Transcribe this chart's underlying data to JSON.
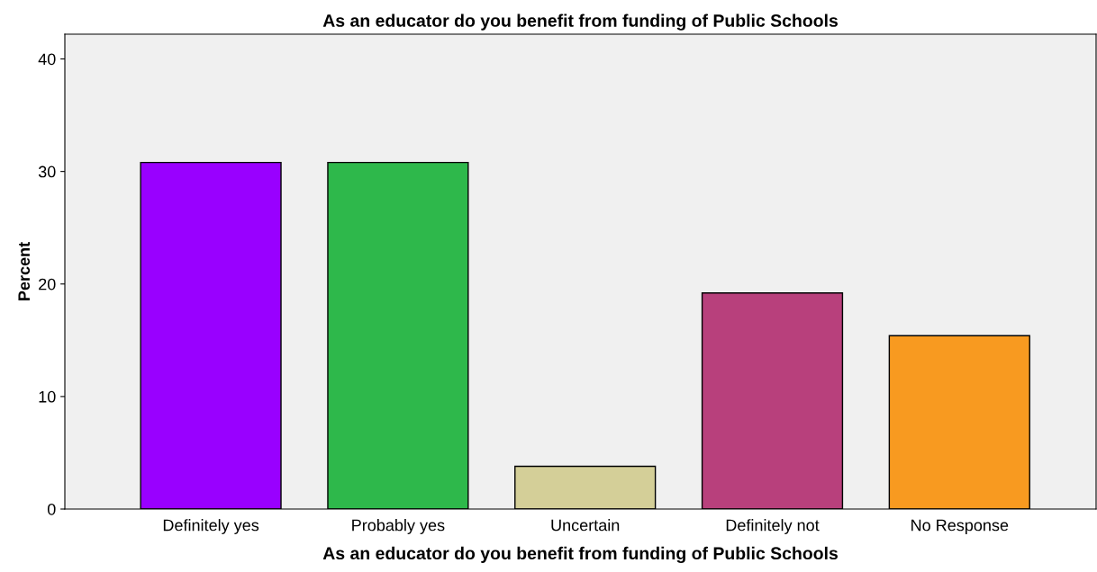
{
  "chart_data": {
    "type": "bar",
    "title": "As an educator do you benefit from funding of Public Schools",
    "xlabel": "As an educator do you benefit from funding of Public Schools",
    "ylabel": "Percent",
    "categories": [
      "Definitely yes",
      "Probably yes",
      "Uncertain",
      "Definitely not",
      "No Response"
    ],
    "values": [
      30.8,
      30.8,
      3.8,
      19.2,
      15.4
    ],
    "colors": [
      "#9900ff",
      "#2eb84b",
      "#d4cf98",
      "#b8407c",
      "#f89a20"
    ],
    "ylim": [
      0,
      42.2
    ],
    "yticks": [
      0,
      10,
      20,
      30,
      40
    ],
    "grid": false,
    "legend": false
  }
}
